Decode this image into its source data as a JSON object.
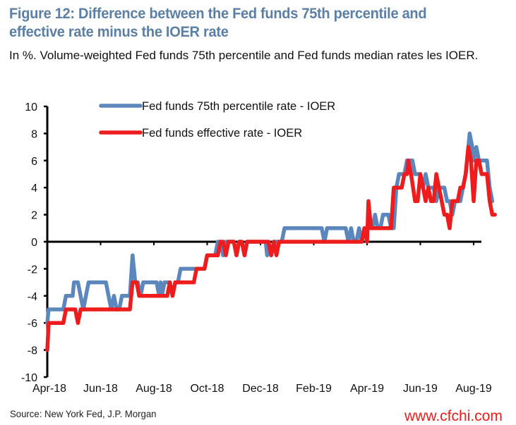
{
  "chart_data": {
    "type": "line",
    "title": "Figure 12: Difference between the Fed funds 75th percentile and effective rate minus the IOER rate",
    "subtitle": "In %. Volume-weighted Fed funds 75th percentile and Fed funds median rates les IOER.",
    "source": "Source: New York Fed, J.P. Morgan",
    "watermark": "www.cfchi.com",
    "xlabel": "",
    "ylabel": "",
    "x_unit": "months since Apr-2018",
    "xlim": [
      0,
      16.3
    ],
    "ylim": [
      -10,
      10
    ],
    "yticks": [
      10,
      8,
      6,
      4,
      2,
      0,
      -2,
      -4,
      -6,
      -8,
      -10
    ],
    "xtick_positions": [
      0,
      2,
      4,
      6,
      8,
      10,
      12,
      14,
      16
    ],
    "xtick_labels": [
      "Apr-18",
      "Jun-18",
      "Aug-18",
      "Oct-18",
      "Dec-18",
      "Feb-19",
      "Apr-19",
      "Jun-19",
      "Aug-19"
    ],
    "legend_position": "top-center",
    "grid": false,
    "series": [
      {
        "name": "Fed funds 75th percentile rate - IOER",
        "color": "#5b87bd",
        "points": [
          [
            0.0,
            -6
          ],
          [
            0.05,
            -5
          ],
          [
            0.6,
            -5
          ],
          [
            0.7,
            -4
          ],
          [
            0.95,
            -4
          ],
          [
            1.0,
            -3
          ],
          [
            1.15,
            -3
          ],
          [
            1.25,
            -4
          ],
          [
            1.35,
            -5
          ],
          [
            1.45,
            -4
          ],
          [
            1.55,
            -3
          ],
          [
            2.2,
            -3
          ],
          [
            2.3,
            -4
          ],
          [
            2.4,
            -5
          ],
          [
            2.5,
            -4
          ],
          [
            2.6,
            -5
          ],
          [
            2.7,
            -5
          ],
          [
            2.8,
            -4
          ],
          [
            3.0,
            -4
          ],
          [
            3.1,
            -4
          ],
          [
            3.2,
            -1
          ],
          [
            3.3,
            -3
          ],
          [
            3.4,
            -3
          ],
          [
            3.5,
            -4
          ],
          [
            3.6,
            -3
          ],
          [
            4.1,
            -3
          ],
          [
            4.2,
            -4
          ],
          [
            4.25,
            -3
          ],
          [
            4.3,
            -4
          ],
          [
            4.4,
            -3
          ],
          [
            4.6,
            -3
          ],
          [
            4.7,
            -4
          ],
          [
            4.8,
            -3
          ],
          [
            4.9,
            -3
          ],
          [
            5.0,
            -2
          ],
          [
            5.7,
            -2
          ],
          [
            5.8,
            -2
          ],
          [
            5.9,
            -2
          ],
          [
            6.0,
            -1
          ],
          [
            6.3,
            -1
          ],
          [
            6.4,
            0
          ],
          [
            6.5,
            0
          ],
          [
            6.6,
            -1
          ],
          [
            6.7,
            0
          ],
          [
            7.0,
            0
          ],
          [
            7.1,
            -1
          ],
          [
            7.2,
            0
          ],
          [
            7.3,
            0
          ],
          [
            7.4,
            -1
          ],
          [
            7.5,
            0
          ],
          [
            8.2,
            0
          ],
          [
            8.25,
            -1
          ],
          [
            8.3,
            0
          ],
          [
            8.4,
            -1
          ],
          [
            8.5,
            0
          ],
          [
            8.8,
            0
          ],
          [
            8.9,
            1
          ],
          [
            9.3,
            1
          ],
          [
            10.3,
            1
          ],
          [
            10.4,
            0
          ],
          [
            10.5,
            1
          ],
          [
            10.6,
            1
          ],
          [
            11.2,
            1
          ],
          [
            11.3,
            0
          ],
          [
            11.4,
            1
          ],
          [
            11.5,
            0
          ],
          [
            11.6,
            0
          ],
          [
            11.7,
            1
          ],
          [
            11.8,
            0
          ],
          [
            11.9,
            1
          ],
          [
            12.0,
            1
          ],
          [
            12.2,
            1
          ],
          [
            12.3,
            2
          ],
          [
            12.4,
            1
          ],
          [
            12.5,
            1
          ],
          [
            12.6,
            2
          ],
          [
            12.8,
            2
          ],
          [
            12.9,
            1
          ],
          [
            13.0,
            1
          ],
          [
            13.1,
            4
          ],
          [
            13.2,
            5
          ],
          [
            13.4,
            5
          ],
          [
            13.5,
            6
          ],
          [
            13.7,
            6
          ],
          [
            13.8,
            5
          ],
          [
            13.9,
            5
          ],
          [
            14.0,
            5
          ],
          [
            14.1,
            4
          ],
          [
            14.2,
            5
          ],
          [
            14.3,
            4
          ],
          [
            14.4,
            4
          ],
          [
            14.5,
            4
          ],
          [
            14.6,
            3
          ],
          [
            14.7,
            4
          ],
          [
            14.9,
            4
          ],
          [
            15.0,
            3
          ],
          [
            15.1,
            3
          ],
          [
            15.2,
            2
          ],
          [
            15.3,
            3
          ],
          [
            15.5,
            3
          ],
          [
            15.6,
            4
          ],
          [
            15.7,
            5
          ],
          [
            15.8,
            7
          ],
          [
            15.85,
            8
          ],
          [
            15.95,
            7
          ],
          [
            16.0,
            6
          ],
          [
            16.1,
            7
          ],
          [
            16.2,
            6
          ],
          [
            16.5,
            6
          ],
          [
            16.6,
            4
          ],
          [
            16.7,
            3
          ]
        ]
      },
      {
        "name": "Fed funds effective rate - IOER",
        "color": "#ee1c1c",
        "points": [
          [
            0.0,
            -8
          ],
          [
            0.05,
            -6
          ],
          [
            0.6,
            -6
          ],
          [
            0.7,
            -5
          ],
          [
            0.95,
            -5
          ],
          [
            1.05,
            -5
          ],
          [
            1.15,
            -6
          ],
          [
            1.25,
            -5
          ],
          [
            3.1,
            -5
          ],
          [
            3.2,
            -3
          ],
          [
            3.35,
            -3
          ],
          [
            3.45,
            -4
          ],
          [
            4.5,
            -4
          ],
          [
            4.6,
            -3
          ],
          [
            4.7,
            -4
          ],
          [
            4.8,
            -3
          ],
          [
            5.0,
            -3
          ],
          [
            5.5,
            -3
          ],
          [
            5.6,
            -2
          ],
          [
            5.9,
            -2
          ],
          [
            6.0,
            -1
          ],
          [
            6.4,
            -1
          ],
          [
            6.5,
            0
          ],
          [
            6.6,
            0
          ],
          [
            6.7,
            -1
          ],
          [
            6.8,
            0
          ],
          [
            7.0,
            0
          ],
          [
            7.1,
            -1
          ],
          [
            7.2,
            0
          ],
          [
            7.3,
            0
          ],
          [
            7.4,
            -1
          ],
          [
            7.5,
            0
          ],
          [
            8.3,
            0
          ],
          [
            8.4,
            -1
          ],
          [
            8.5,
            0
          ],
          [
            8.6,
            -1
          ],
          [
            8.7,
            0
          ],
          [
            11.8,
            0
          ],
          [
            11.9,
            1
          ],
          [
            12.0,
            0
          ],
          [
            12.05,
            3
          ],
          [
            12.15,
            1
          ],
          [
            12.3,
            1
          ],
          [
            12.4,
            1
          ],
          [
            12.8,
            1
          ],
          [
            12.9,
            1
          ],
          [
            13.0,
            4
          ],
          [
            13.2,
            4
          ],
          [
            13.3,
            4
          ],
          [
            13.4,
            5
          ],
          [
            13.5,
            5
          ],
          [
            13.55,
            6
          ],
          [
            13.65,
            5
          ],
          [
            13.8,
            3
          ],
          [
            13.9,
            3
          ],
          [
            14.0,
            5
          ],
          [
            14.1,
            4
          ],
          [
            14.2,
            3
          ],
          [
            14.3,
            4
          ],
          [
            14.4,
            3
          ],
          [
            14.5,
            3
          ],
          [
            14.6,
            5
          ],
          [
            14.7,
            4
          ],
          [
            14.8,
            3
          ],
          [
            14.9,
            2
          ],
          [
            15.0,
            2
          ],
          [
            15.1,
            1
          ],
          [
            15.2,
            3
          ],
          [
            15.3,
            3
          ],
          [
            15.4,
            3
          ],
          [
            15.5,
            4
          ],
          [
            15.6,
            4
          ],
          [
            15.7,
            5
          ],
          [
            15.8,
            7
          ],
          [
            15.9,
            6
          ],
          [
            16.0,
            3
          ],
          [
            16.1,
            6
          ],
          [
            16.2,
            6
          ],
          [
            16.3,
            5
          ],
          [
            16.5,
            5
          ],
          [
            16.6,
            3
          ],
          [
            16.7,
            2
          ],
          [
            16.8,
            2
          ]
        ]
      }
    ]
  }
}
